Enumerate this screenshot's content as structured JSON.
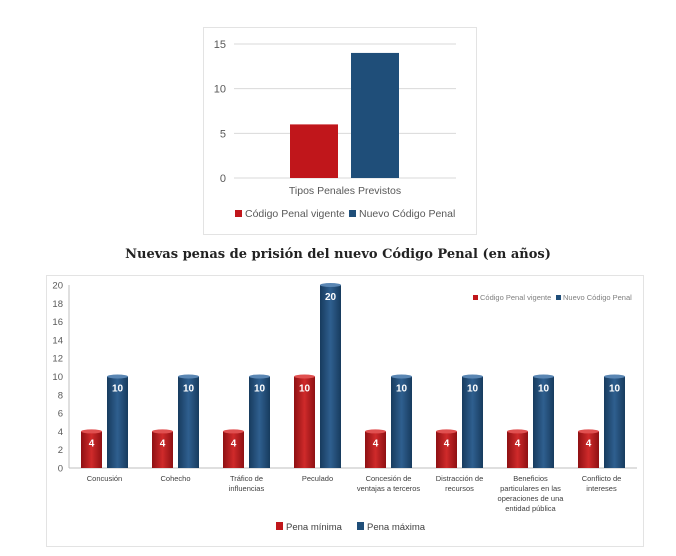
{
  "colors": {
    "red": "#c0161b",
    "red_dark": "#8e1013",
    "blue": "#1f4e79",
    "blue_light": "#3f6f9c",
    "grid": "#d9d9d9",
    "axis_text": "#595959"
  },
  "chart_data": [
    {
      "type": "bar",
      "title": "",
      "categories": [
        "Tipos Penales Previstos"
      ],
      "series": [
        {
          "name": "Código Penal vigente",
          "values": [
            6
          ],
          "color": "#c0161b"
        },
        {
          "name": "Nuevo Código Penal",
          "values": [
            14
          ],
          "color": "#1f4e79"
        }
      ],
      "ylim": [
        0,
        15
      ],
      "yticks": [
        0,
        5,
        10,
        15
      ],
      "legend": "bottom",
      "grid": true
    },
    {
      "type": "bar",
      "title": "Nuevas penas de prisión del nuevo Código Penal (en años)",
      "categories": [
        "Concusión",
        "Cohecho",
        "Tráfico de influencias",
        "Peculado",
        "Concesión de ventajas a terceros",
        "Distracción de recursos",
        "Beneficios particulares en las operaciones de una entidad pública",
        "Conflicto de intereses"
      ],
      "category_lines": [
        [
          "Concusión"
        ],
        [
          "Cohecho"
        ],
        [
          "Tráfico de",
          "influencias"
        ],
        [
          "Peculado"
        ],
        [
          "Concesión de",
          "ventajas a terceros"
        ],
        [
          "Distracción de",
          "recursos"
        ],
        [
          "Beneficios",
          "particulares en las",
          "operaciones de una",
          "entidad pública"
        ],
        [
          "Conflicto de",
          "intereses"
        ]
      ],
      "series": [
        {
          "name": "Pena mínima",
          "values": [
            4,
            4,
            4,
            10,
            4,
            4,
            4,
            4
          ],
          "color": "#c0161b"
        },
        {
          "name": "Pena máxima",
          "values": [
            10,
            10,
            10,
            20,
            10,
            10,
            10,
            10
          ],
          "color": "#1f4e79"
        }
      ],
      "ylim": [
        0,
        20
      ],
      "yticks": [
        0,
        2,
        4,
        6,
        8,
        10,
        12,
        14,
        16,
        18,
        20
      ],
      "legend": "bottom",
      "inner_legend": [
        "Código Penal vigente",
        "Nuevo Código Penal"
      ],
      "data_labels": true,
      "grid": false
    }
  ]
}
